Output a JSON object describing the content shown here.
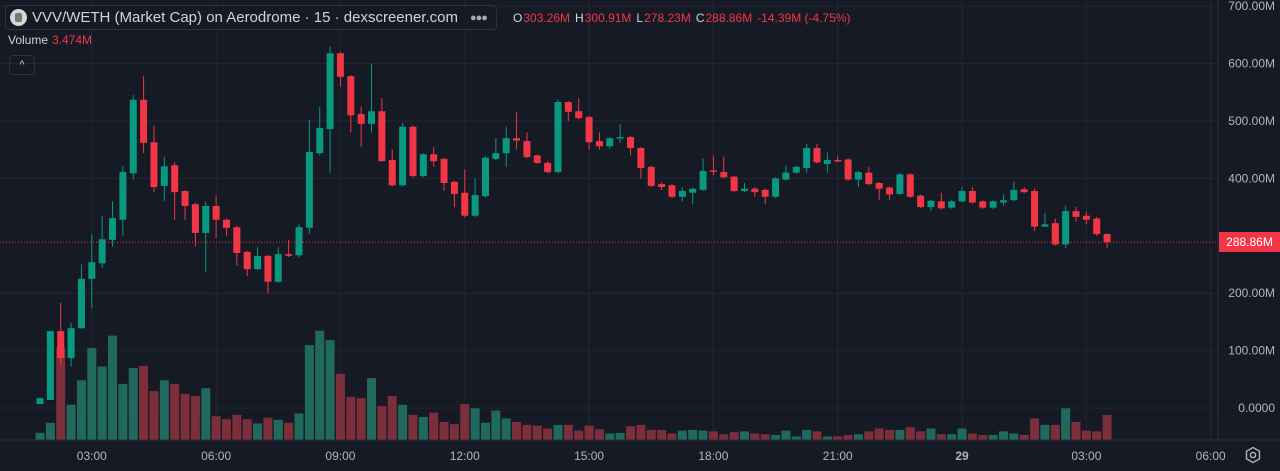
{
  "header": {
    "title": "VVV/WETH (Market Cap) on Aerodrome · 15 · dexscreener.com",
    "more_icon": "ellipsis-icon",
    "ohlc": {
      "o_label": "O",
      "o": "303.26M",
      "h_label": "H",
      "h": "300.91M",
      "l_label": "L",
      "l": "278.23M",
      "c_label": "C",
      "c": "288.86M",
      "change": "-14.39M (-4.75%)"
    },
    "volume_label": "Volume",
    "volume_value": "3.474M",
    "collapse_icon": "chevron-up-icon"
  },
  "current_price_label": "288.86M",
  "colors": {
    "background": "#161a25",
    "up": "#089981",
    "down": "#f23645",
    "vol_up": "#1f6a5d",
    "vol_down": "#7c2f3b",
    "grid": "#232734"
  },
  "chart_data": {
    "type": "candlestick",
    "interval_minutes": 15,
    "first_candle_hour": 1.75,
    "ylabel": "Market Cap",
    "ylim": [
      0,
      700
    ],
    "current_price": 288.86,
    "y_ticks": [
      "700.00M",
      "600.00M",
      "500.00M",
      "400.00M",
      "200.00M",
      "100.00M",
      "0.0000"
    ],
    "y_tick_values": [
      700,
      600,
      500,
      400,
      200,
      100,
      0
    ],
    "x_ticks": [
      {
        "label": "03:00",
        "hour": 3
      },
      {
        "label": "06:00",
        "hour": 6
      },
      {
        "label": "09:00",
        "hour": 9
      },
      {
        "label": "12:00",
        "hour": 12
      },
      {
        "label": "15:00",
        "hour": 15
      },
      {
        "label": "18:00",
        "hour": 18
      },
      {
        "label": "21:00",
        "hour": 21
      },
      {
        "label": "29",
        "hour": 24
      },
      {
        "label": "03:00",
        "hour": 27
      },
      {
        "label": "06:00",
        "hour": 30
      }
    ],
    "candles_ohlcv_in_millions": [
      [
        7,
        18,
        6,
        17,
        1.0
      ],
      [
        14,
        134,
        14,
        134,
        2.4
      ],
      [
        134,
        183,
        75,
        87,
        12.9
      ],
      [
        87,
        148,
        72,
        139,
        4.9
      ],
      [
        139,
        250,
        138,
        225,
        8.3
      ],
      [
        225,
        303,
        174,
        254,
        12.8
      ],
      [
        252,
        335,
        244,
        294,
        10.2
      ],
      [
        293,
        360,
        281,
        331,
        14.5
      ],
      [
        328,
        422,
        300,
        411,
        7.8
      ],
      [
        409,
        545,
        398,
        537,
        10.0
      ],
      [
        537,
        578,
        444,
        462,
        10.3
      ],
      [
        463,
        492,
        376,
        385,
        6.8
      ],
      [
        387,
        438,
        361,
        421,
        8.3
      ],
      [
        423,
        428,
        328,
        376,
        7.8
      ],
      [
        378,
        380,
        327,
        352,
        6.4
      ],
      [
        355,
        358,
        282,
        305,
        6.1
      ],
      [
        305,
        360,
        237,
        352,
        7.2
      ],
      [
        352,
        370,
        296,
        328,
        3.3
      ],
      [
        328,
        330,
        300,
        314,
        2.9
      ],
      [
        315,
        318,
        248,
        270,
        3.5
      ],
      [
        272,
        274,
        230,
        242,
        2.9
      ],
      [
        242,
        280,
        240,
        265,
        2.3
      ],
      [
        265,
        267,
        200,
        220,
        3.1
      ],
      [
        220,
        280,
        218,
        268,
        2.8
      ],
      [
        268,
        293,
        263,
        265,
        2.4
      ],
      [
        266,
        320,
        262,
        315,
        3.7
      ],
      [
        314,
        502,
        303,
        446,
        13.2
      ],
      [
        444,
        525,
        440,
        488,
        15.2
      ],
      [
        486,
        630,
        410,
        618,
        13.9
      ],
      [
        618,
        620,
        560,
        577,
        9.2
      ],
      [
        578,
        580,
        480,
        510,
        6.0
      ],
      [
        512,
        525,
        455,
        495,
        5.8
      ],
      [
        495,
        600,
        480,
        517,
        8.6
      ],
      [
        517,
        540,
        430,
        430,
        4.7
      ],
      [
        432,
        450,
        386,
        388,
        6.1
      ],
      [
        388,
        497,
        386,
        490,
        4.9
      ],
      [
        490,
        492,
        402,
        404,
        3.5
      ],
      [
        404,
        444,
        402,
        442,
        3.2
      ],
      [
        442,
        455,
        420,
        430,
        3.8
      ],
      [
        434,
        436,
        378,
        392,
        2.5
      ],
      [
        394,
        396,
        350,
        373,
        2.2
      ],
      [
        375,
        415,
        332,
        335,
        5.0
      ],
      [
        335,
        400,
        333,
        371,
        4.4
      ],
      [
        369,
        438,
        367,
        436,
        2.4
      ],
      [
        434,
        470,
        432,
        444,
        4.1
      ],
      [
        444,
        490,
        420,
        470,
        3.0
      ],
      [
        470,
        515,
        450,
        466,
        2.5
      ],
      [
        465,
        480,
        435,
        437,
        2.1
      ],
      [
        440,
        442,
        425,
        427,
        2.0
      ],
      [
        427,
        430,
        409,
        411,
        1.6
      ],
      [
        411,
        537,
        409,
        533,
        2.1
      ],
      [
        533,
        535,
        500,
        516,
        2.1
      ],
      [
        517,
        540,
        503,
        505,
        1.3
      ],
      [
        507,
        509,
        450,
        463,
        2.0
      ],
      [
        465,
        480,
        450,
        456,
        1.5
      ],
      [
        456,
        472,
        452,
        470,
        0.9
      ],
      [
        470,
        495,
        462,
        472,
        1.0
      ],
      [
        472,
        474,
        440,
        453,
        1.9
      ],
      [
        453,
        455,
        400,
        418,
        2.1
      ],
      [
        420,
        422,
        385,
        387,
        1.4
      ],
      [
        390,
        393,
        380,
        385,
        1.4
      ],
      [
        388,
        390,
        366,
        368,
        0.9
      ],
      [
        368,
        385,
        360,
        378,
        1.3
      ],
      [
        375,
        384,
        355,
        382,
        1.4
      ],
      [
        380,
        435,
        378,
        413,
        1.3
      ],
      [
        414,
        440,
        405,
        412,
        1.2
      ],
      [
        411,
        438,
        400,
        402,
        0.8
      ],
      [
        403,
        405,
        376,
        378,
        1.1
      ],
      [
        378,
        392,
        376,
        382,
        1.2
      ],
      [
        382,
        385,
        368,
        376,
        0.9
      ],
      [
        380,
        382,
        355,
        368,
        0.8
      ],
      [
        368,
        402,
        366,
        400,
        0.7
      ],
      [
        398,
        422,
        396,
        410,
        1.3
      ],
      [
        410,
        422,
        408,
        420,
        0.5
      ],
      [
        418,
        460,
        410,
        453,
        1.4
      ],
      [
        453,
        460,
        426,
        428,
        1.2
      ],
      [
        425,
        445,
        410,
        432,
        0.5
      ],
      [
        432,
        440,
        428,
        430,
        0.5
      ],
      [
        433,
        435,
        396,
        398,
        0.7
      ],
      [
        398,
        413,
        385,
        411,
        0.8
      ],
      [
        410,
        420,
        388,
        390,
        1.2
      ],
      [
        392,
        394,
        362,
        382,
        1.6
      ],
      [
        384,
        386,
        362,
        372,
        1.4
      ],
      [
        373,
        410,
        371,
        407,
        1.4
      ],
      [
        407,
        409,
        366,
        368,
        1.8
      ],
      [
        370,
        372,
        348,
        350,
        1.2
      ],
      [
        350,
        363,
        343,
        361,
        1.6
      ],
      [
        360,
        375,
        346,
        348,
        0.8
      ],
      [
        349,
        362,
        347,
        360,
        0.8
      ],
      [
        360,
        385,
        358,
        378,
        1.6
      ],
      [
        378,
        385,
        356,
        358,
        0.9
      ],
      [
        360,
        362,
        347,
        349,
        0.7
      ],
      [
        349,
        362,
        347,
        360,
        0.7
      ],
      [
        358,
        372,
        352,
        362,
        1.2
      ],
      [
        362,
        395,
        360,
        380,
        0.9
      ],
      [
        381,
        385,
        374,
        376,
        0.7
      ],
      [
        378,
        382,
        308,
        316,
        3.0
      ],
      [
        316,
        340,
        315,
        320,
        2.1
      ],
      [
        322,
        330,
        283,
        285,
        2.1
      ],
      [
        285,
        352,
        278,
        343,
        4.4
      ],
      [
        343,
        350,
        325,
        333,
        2.5
      ],
      [
        335,
        342,
        320,
        328,
        1.3
      ],
      [
        330,
        333,
        300,
        303,
        1.2
      ],
      [
        303.26,
        300.91,
        278.23,
        288.86,
        3.474
      ]
    ]
  },
  "settings_icon": "gear-icon"
}
